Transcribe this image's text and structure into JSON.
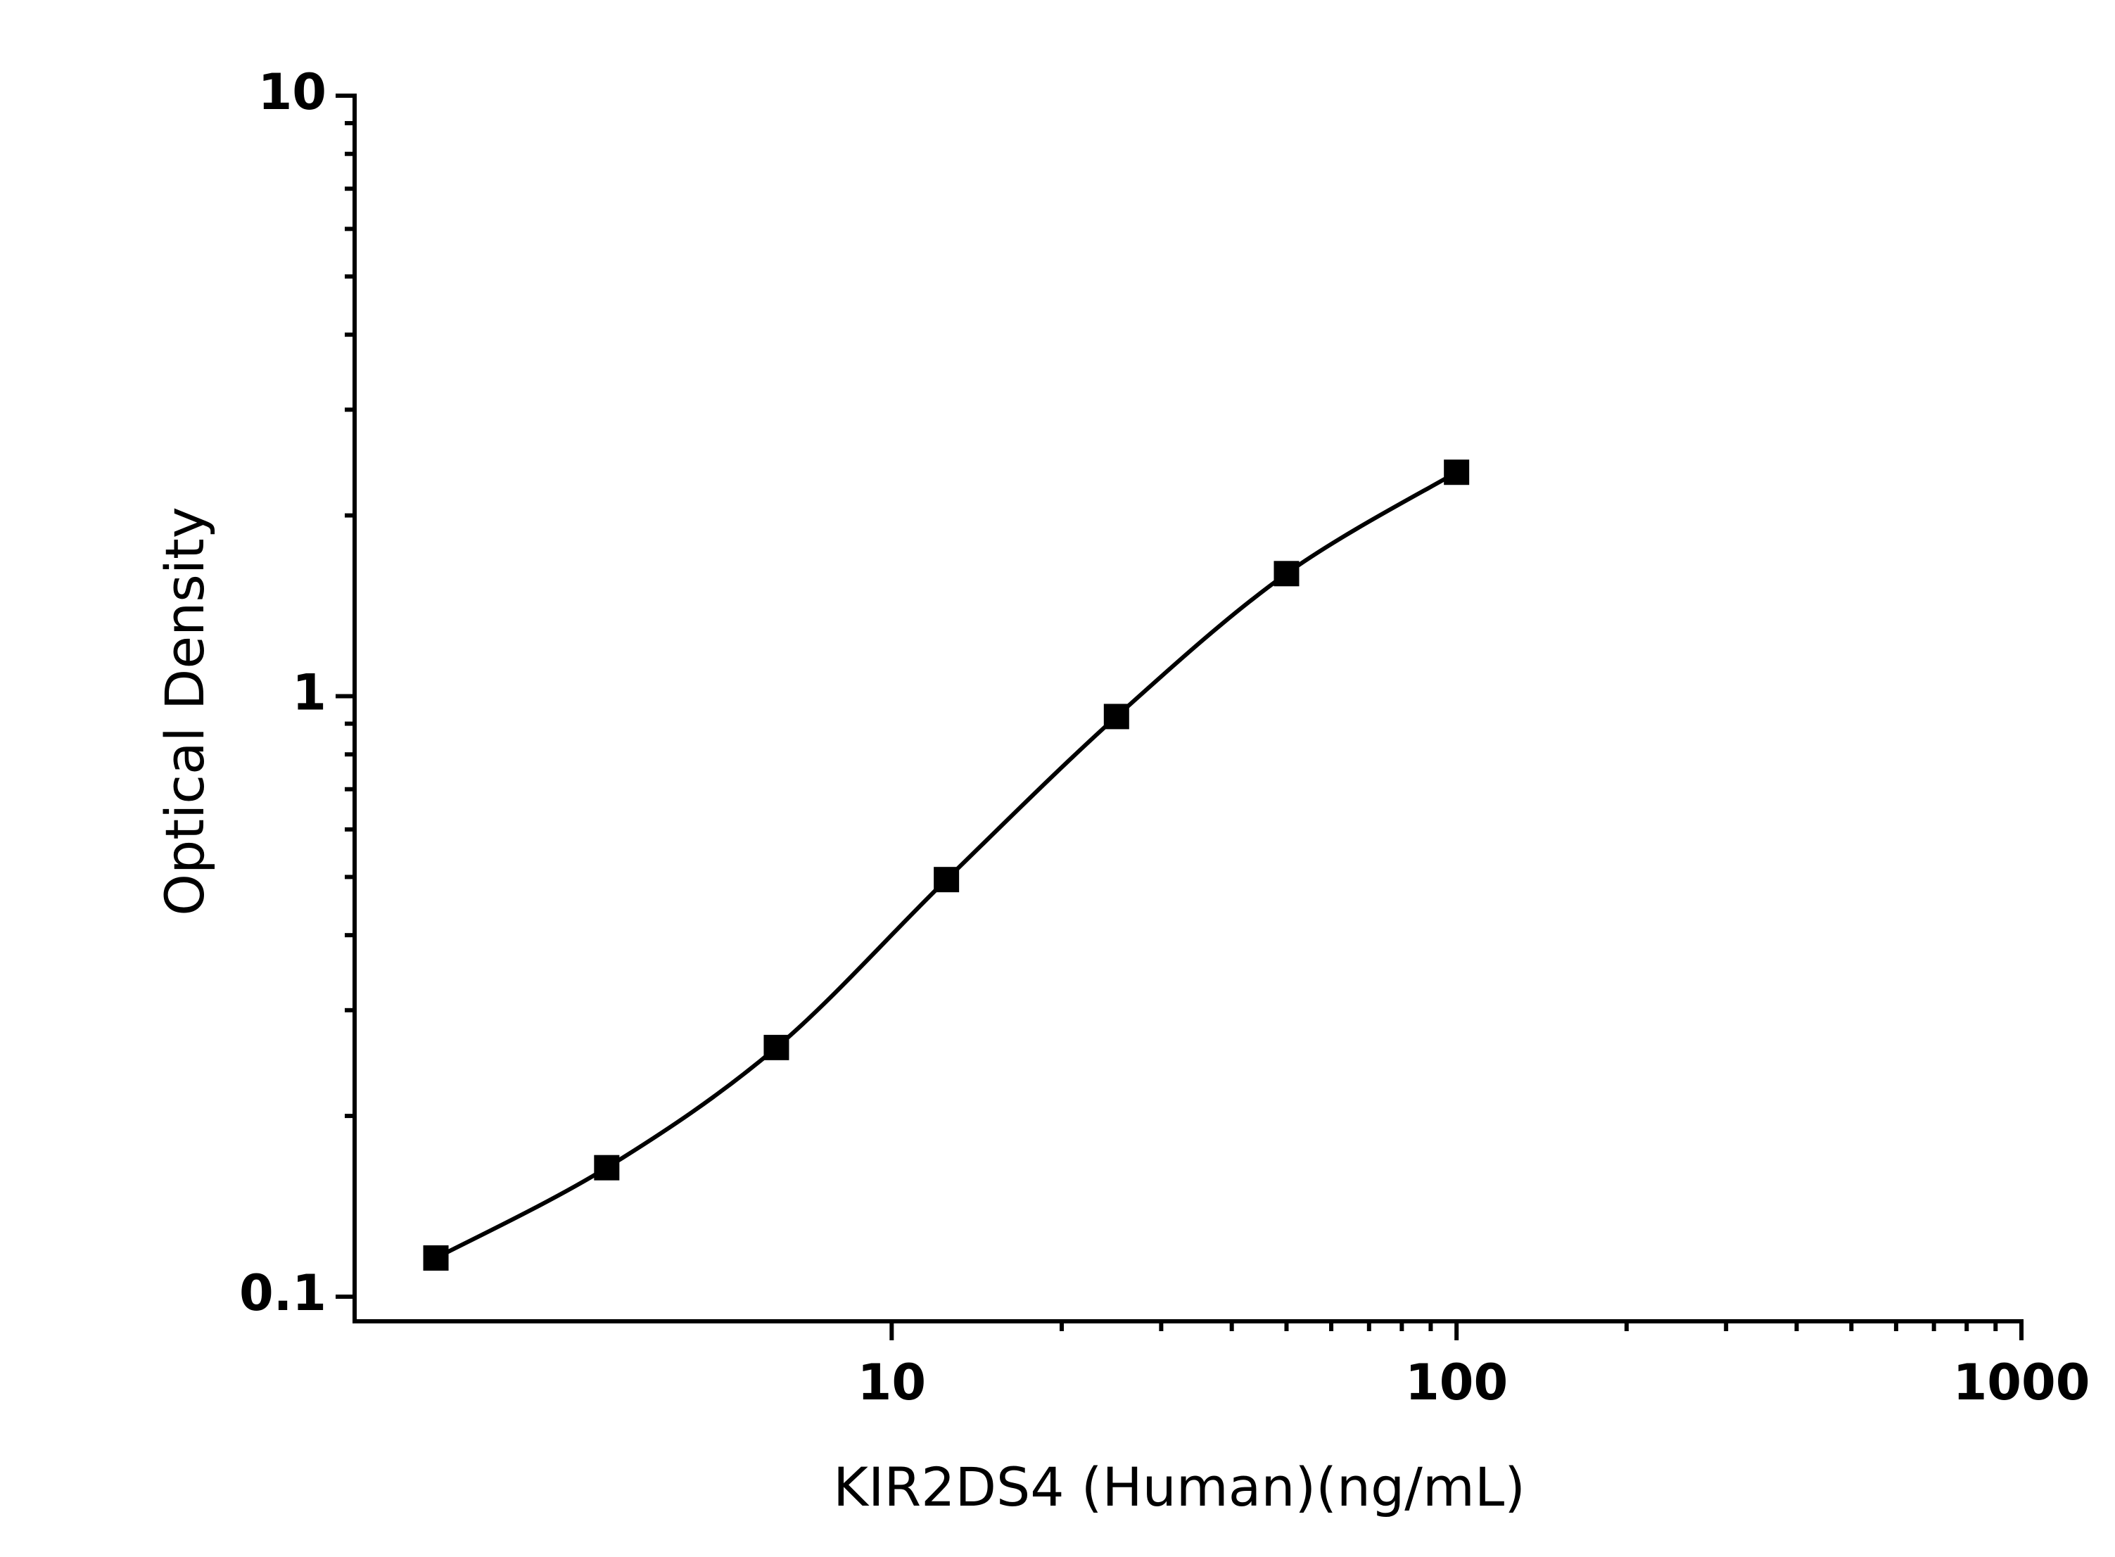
{
  "chart_data": {
    "type": "scatter",
    "x_label": "KIR2DS4 (Human)(ng/mL)",
    "y_label": "Optical Density",
    "x_log": true,
    "y_log": true,
    "xlim": [
      1.12,
      1000
    ],
    "ylim": [
      0.091,
      10
    ],
    "xticks": [
      10,
      100,
      1000
    ],
    "yticks": [
      0.1,
      1,
      10
    ],
    "series": [
      {
        "color": "#000000",
        "x": [
          1.56,
          3.13,
          6.25,
          12.5,
          25,
          50,
          100
        ],
        "values": [
          0.116,
          0.164,
          0.26,
          0.495,
          0.925,
          1.6,
          2.36
        ]
      }
    ]
  }
}
